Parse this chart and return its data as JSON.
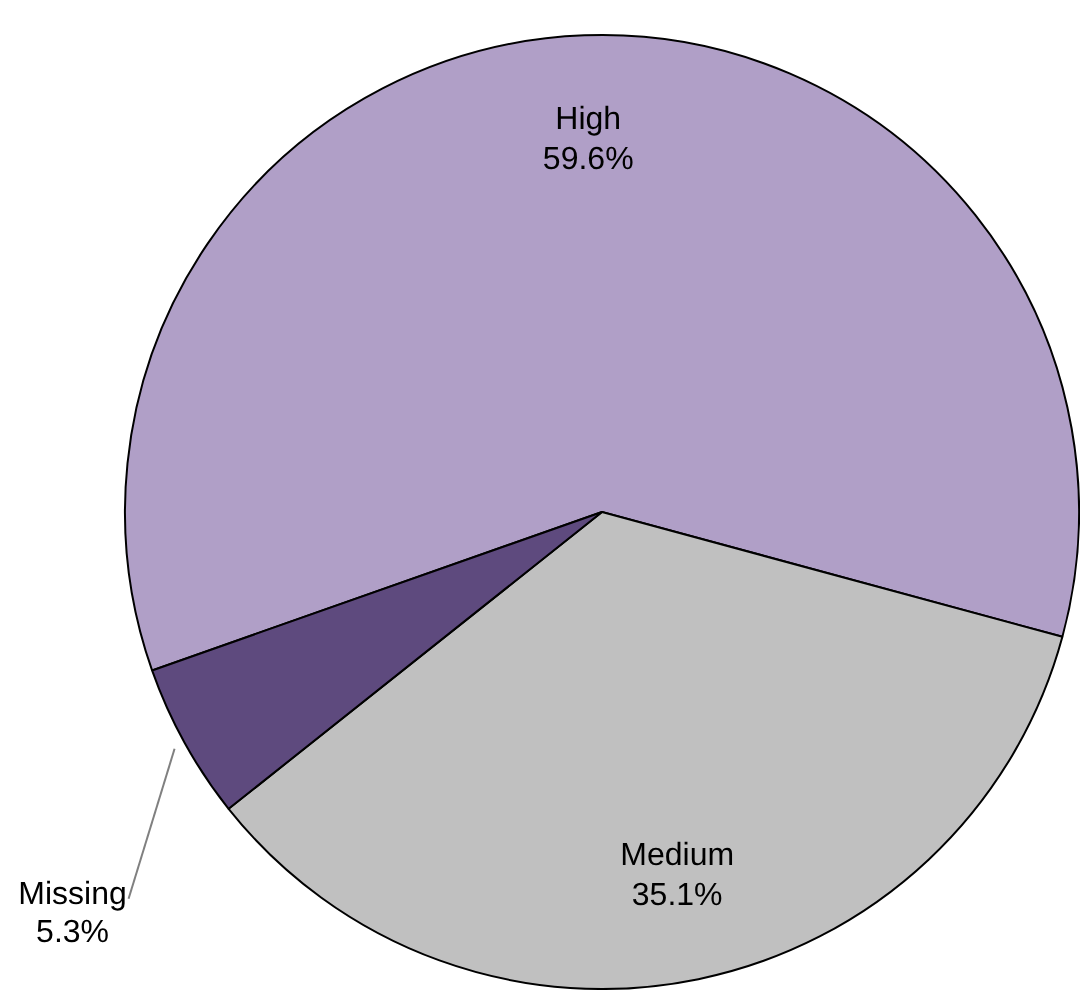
{
  "chart_data": {
    "type": "pie",
    "categories": [
      "High",
      "Medium",
      "Missing"
    ],
    "values": [
      59.6,
      35.1,
      5.3
    ],
    "colors": [
      "#b09fc7",
      "#c0c0c0",
      "#5e4a7e"
    ],
    "value_labels": [
      "59.6%",
      "35.1%",
      "5.3%"
    ],
    "legend": false
  }
}
